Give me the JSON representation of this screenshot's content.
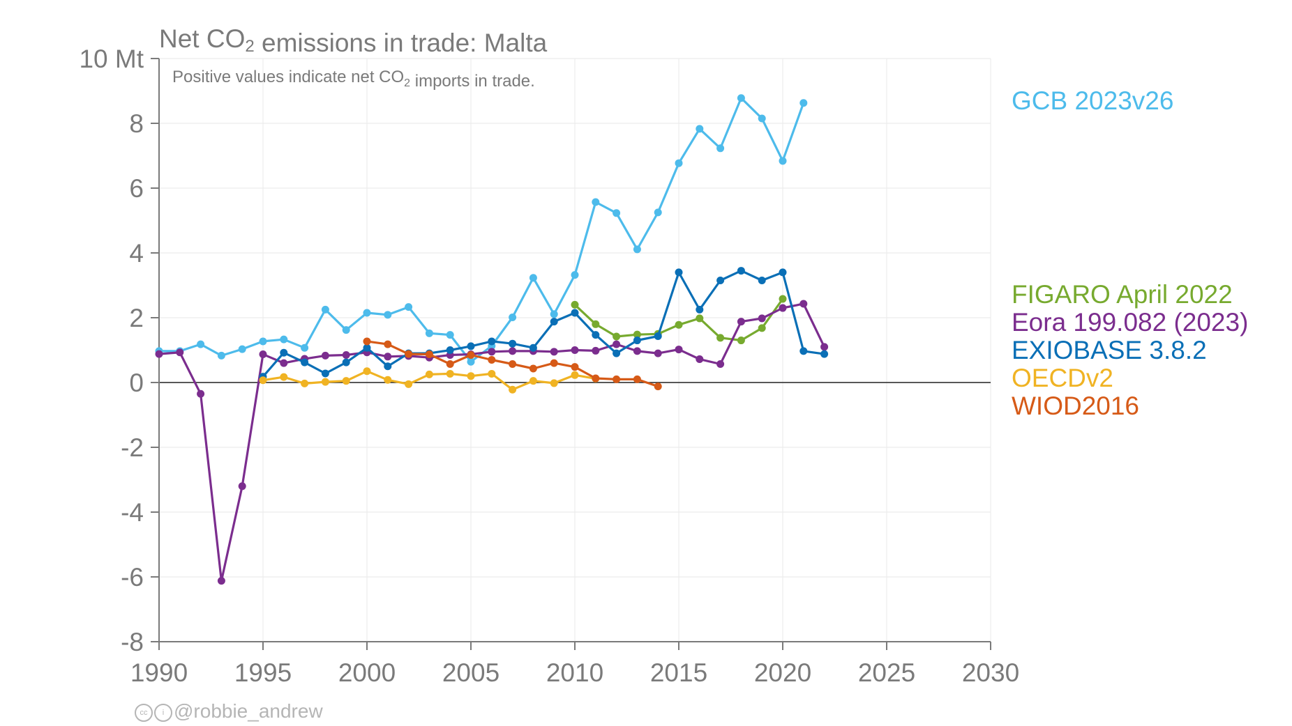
{
  "chart_data": {
    "type": "line",
    "title": "Net CO₂ emissions in trade: Malta",
    "subtitle": "Positive values indicate net CO₂ imports in trade.",
    "unit_label": "Mt",
    "xlim": [
      1990,
      2030
    ],
    "ylim": [
      -8,
      10
    ],
    "x_ticks": [
      "1990",
      "1995",
      "2000",
      "2005",
      "2010",
      "2015",
      "2020",
      "2025",
      "2030"
    ],
    "y_ticks": [
      "10 Mt",
      "8",
      "6",
      "4",
      "2",
      "0",
      "-2",
      "-4",
      "-6",
      "-8"
    ],
    "y_tick_values": [
      10,
      8,
      6,
      4,
      2,
      0,
      -2,
      -4,
      -6,
      -8
    ],
    "x_tick_values": [
      1990,
      1995,
      2000,
      2005,
      2010,
      2015,
      2020,
      2025,
      2030
    ],
    "grid": true,
    "legend_position": "right",
    "series": [
      {
        "name": "GCB 2023v26",
        "color": "#4dbbeb",
        "x": [
          1990,
          1991,
          1992,
          1993,
          1994,
          1995,
          1996,
          1997,
          1998,
          1999,
          2000,
          2001,
          2002,
          2003,
          2004,
          2005,
          2006,
          2007,
          2008,
          2009,
          2010,
          2011,
          2012,
          2013,
          2014,
          2015,
          2016,
          2017,
          2018,
          2019,
          2020,
          2021
        ],
        "y": [
          0.97,
          0.97,
          1.18,
          0.83,
          1.03,
          1.27,
          1.33,
          1.07,
          2.25,
          1.62,
          2.15,
          2.09,
          2.33,
          1.52,
          1.47,
          0.64,
          1.13,
          2.01,
          3.23,
          2.11,
          3.32,
          5.57,
          5.23,
          4.11,
          5.25,
          6.77,
          7.83,
          7.23,
          8.78,
          8.15,
          6.84,
          8.63
        ]
      },
      {
        "name": "FIGARO April 2022",
        "color": "#77aa2f",
        "x": [
          2010,
          2011,
          2012,
          2013,
          2014,
          2015,
          2016,
          2017,
          2018,
          2019,
          2020
        ],
        "y": [
          2.4,
          1.8,
          1.42,
          1.48,
          1.5,
          1.78,
          1.98,
          1.38,
          1.3,
          1.68,
          2.58
        ]
      },
      {
        "name": "Eora 199.082 (2023)",
        "color": "#7b2d8e",
        "x": [
          1990,
          1991,
          1992,
          1993,
          1994,
          1995,
          1996,
          1997,
          1998,
          1999,
          2000,
          2001,
          2002,
          2003,
          2004,
          2005,
          2006,
          2007,
          2008,
          2009,
          2010,
          2011,
          2012,
          2013,
          2014,
          2015,
          2016,
          2017,
          2018,
          2019,
          2020,
          2021,
          2022
        ],
        "y": [
          0.88,
          0.93,
          -0.35,
          -6.12,
          -3.2,
          0.87,
          0.6,
          0.73,
          0.83,
          0.85,
          0.93,
          0.8,
          0.82,
          0.77,
          0.85,
          0.87,
          0.95,
          0.97,
          0.97,
          0.95,
          1.0,
          0.98,
          1.18,
          0.97,
          0.9,
          1.02,
          0.72,
          0.57,
          1.88,
          1.98,
          2.3,
          2.43,
          1.1
        ]
      },
      {
        "name": "EXIOBASE 3.8.2",
        "color": "#0a6fb6",
        "x": [
          1995,
          1996,
          1997,
          1998,
          1999,
          2000,
          2001,
          2002,
          2003,
          2004,
          2005,
          2006,
          2007,
          2008,
          2009,
          2010,
          2011,
          2012,
          2013,
          2014,
          2015,
          2016,
          2017,
          2018,
          2019,
          2020,
          2021,
          2022
        ],
        "y": [
          0.18,
          0.92,
          0.62,
          0.28,
          0.62,
          1.07,
          0.5,
          0.9,
          0.9,
          1.0,
          1.12,
          1.27,
          1.2,
          1.07,
          1.88,
          2.15,
          1.47,
          0.9,
          1.3,
          1.43,
          3.4,
          2.25,
          3.15,
          3.45,
          3.15,
          3.4,
          0.97,
          0.88
        ]
      },
      {
        "name": "OECDv2",
        "color": "#f0b323",
        "x": [
          1995,
          1996,
          1997,
          1998,
          1999,
          2000,
          2001,
          2002,
          2003,
          2004,
          2005,
          2006,
          2007,
          2008,
          2009,
          2010,
          2011
        ],
        "y": [
          0.07,
          0.17,
          -0.03,
          0.02,
          0.05,
          0.35,
          0.08,
          -0.05,
          0.25,
          0.27,
          0.2,
          0.27,
          -0.22,
          0.05,
          -0.02,
          0.23,
          0.12
        ]
      },
      {
        "name": "WIOD2016",
        "color": "#d65a17",
        "x": [
          2000,
          2001,
          2002,
          2003,
          2004,
          2005,
          2006,
          2007,
          2008,
          2009,
          2010,
          2011,
          2012,
          2013,
          2014
        ],
        "y": [
          1.27,
          1.18,
          0.88,
          0.87,
          0.57,
          0.85,
          0.7,
          0.57,
          0.43,
          0.6,
          0.48,
          0.13,
          0.1,
          0.1,
          -0.12
        ]
      }
    ]
  },
  "credit": {
    "cc_icon": "cc-icon",
    "by_icon": "by-icon",
    "text": "@robbie_andrew"
  }
}
